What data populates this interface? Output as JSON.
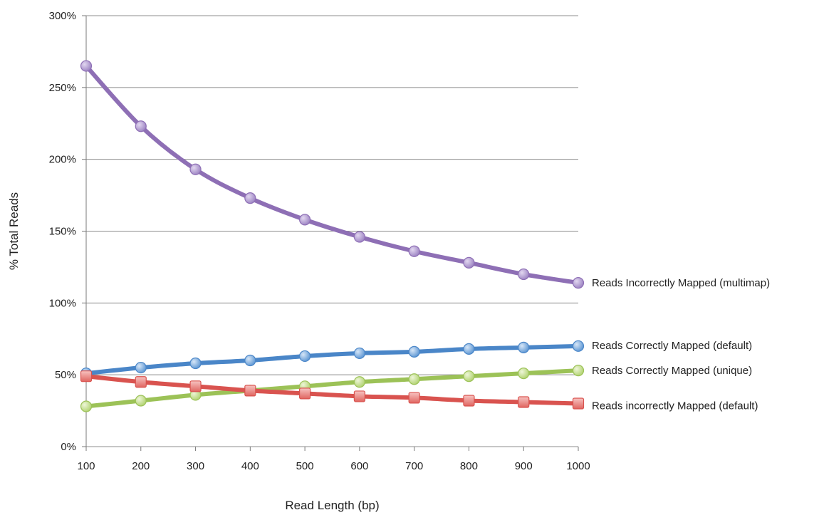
{
  "chart_data": {
    "type": "line",
    "title": "",
    "xlabel": "Read Length (bp)",
    "ylabel": "% Total Reads",
    "x": [
      100,
      200,
      300,
      400,
      500,
      600,
      700,
      800,
      900,
      1000
    ],
    "x_tick_labels": [
      "100",
      "200",
      "300",
      "400",
      "500",
      "600",
      "700",
      "800",
      "900",
      "1000"
    ],
    "xlim": [
      100,
      1000
    ],
    "ylim": [
      0,
      300
    ],
    "y_tick_labels": [
      "0%",
      "50%",
      "100%",
      "150%",
      "200%",
      "250%",
      "300%"
    ],
    "grid": "horizontal",
    "legend": "inline-right",
    "series": [
      {
        "name": "Reads Incorrectly Mapped (multimap)",
        "color": "#8e6fb5",
        "marker": "circle",
        "values": [
          265,
          223,
          193,
          173,
          158,
          146,
          136,
          128,
          120,
          114
        ]
      },
      {
        "name": "Reads Correctly Mapped (default)",
        "color": "#4a86c8",
        "marker": "circle",
        "values": [
          51,
          55,
          58,
          60,
          63,
          65,
          66,
          68,
          69,
          70
        ]
      },
      {
        "name": "Reads Correctly Mapped (unique)",
        "color": "#9cc257",
        "marker": "circle",
        "values": [
          28,
          32,
          36,
          39,
          42,
          45,
          47,
          49,
          51,
          53
        ]
      },
      {
        "name": "Reads incorrectly Mapped (default)",
        "color": "#d9534f",
        "marker": "square",
        "values": [
          49,
          45,
          42,
          39,
          37,
          35,
          34,
          32,
          31,
          30
        ]
      }
    ]
  }
}
